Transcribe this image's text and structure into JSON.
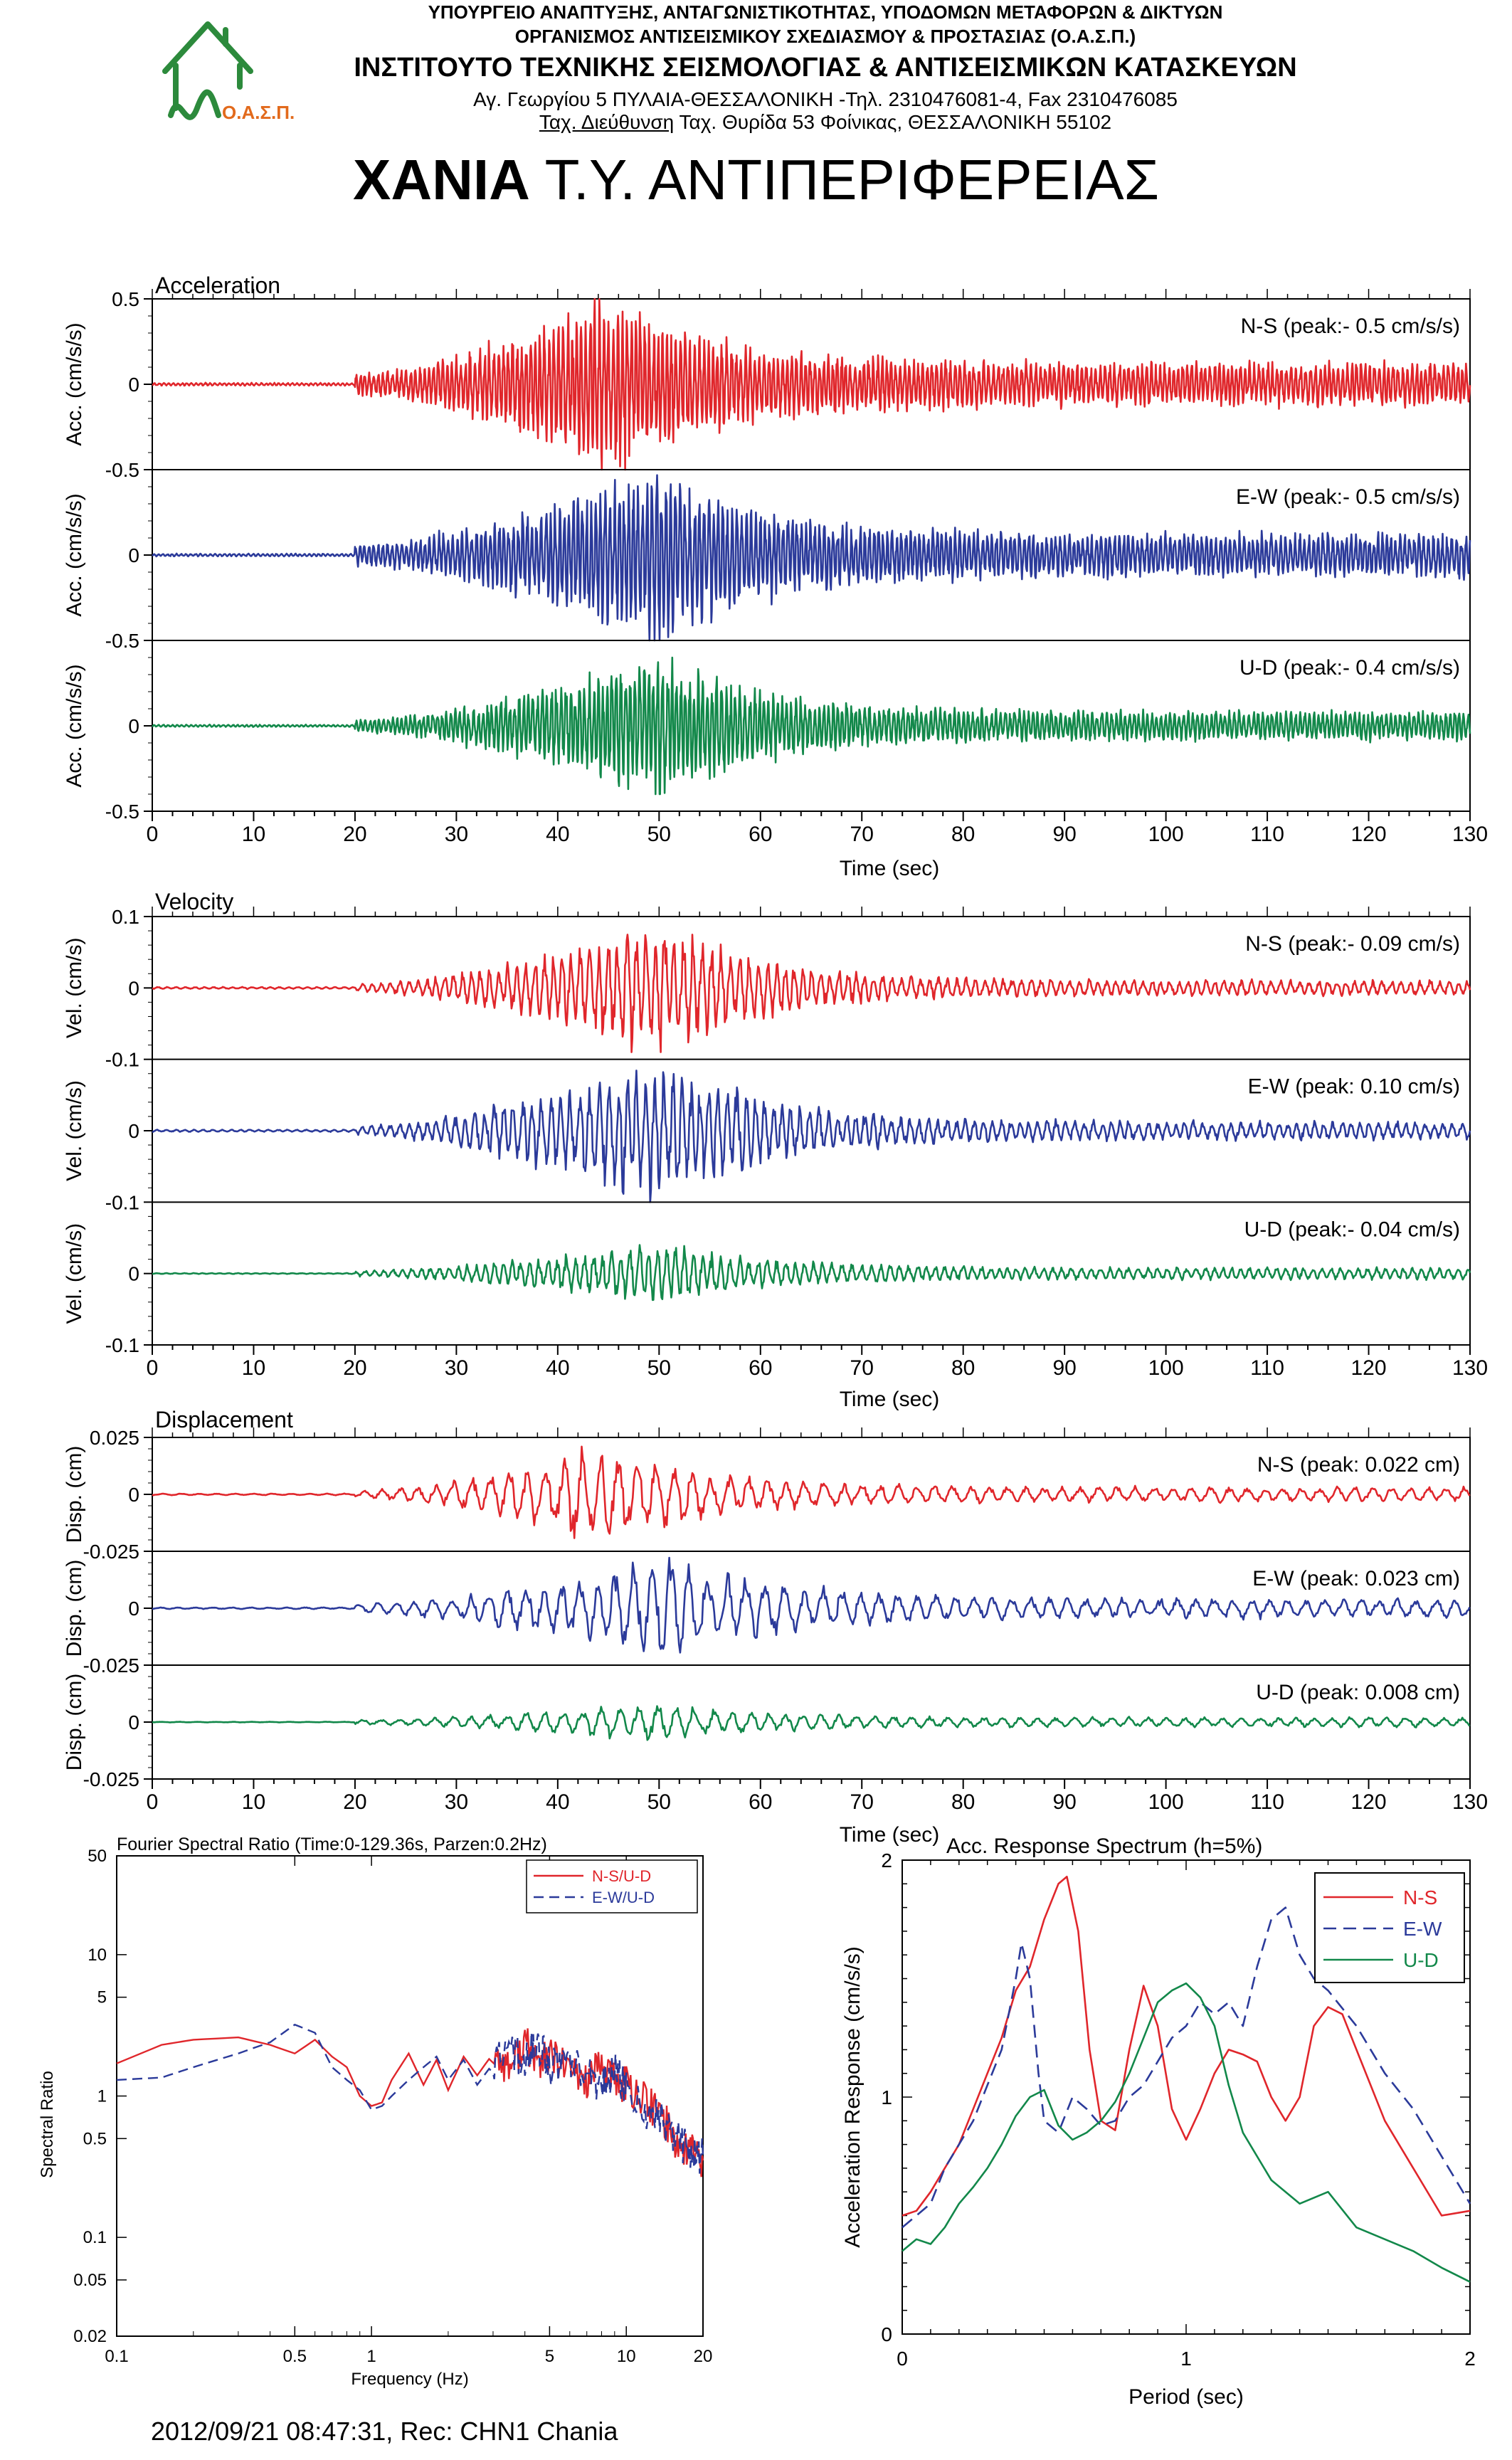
{
  "header": {
    "line1": "ΥΠΟΥΡΓΕΙΟ ΑΝΑΠΤΥΞΗΣ, ΑΝΤΑΓΩΝΙΣΤΙΚΟΤΗΤΑΣ, ΥΠΟΔΟΜΩΝ ΜΕΤΑΦΟΡΩΝ & ΔΙΚΤΥΩΝ",
    "line2": "ΟΡΓΑΝΙΣΜΟΣ ΑΝΤΙΣΕΙΣΜΙΚΟΥ ΣΧΕΔΙΑΣΜΟΥ & ΠΡΟΣΤΑΣΙΑΣ (Ο.Α.Σ.Π.)",
    "line3": "ΙΝΣΤΙΤΟΥΤΟ ΤΕΧΝΙΚΗΣ ΣΕΙΣΜΟΛΟΓΙΑΣ & ΑΝΤΙΣΕΙΣΜΙΚΩΝ ΚΑΤΑΣΚΕΥΩΝ",
    "line4": "Αγ. Γεωργίου 5 ΠΥΛΑΙΑ-ΘΕΣΣΑΛΟΝΙΚΗ -Τηλ. 2310476081-4,  Fax 2310476085",
    "line5_a": "Ταχ. Διεύθυνση",
    "line5_b": " Ταχ. Θυρίδα 53 Φοίνικας, ΘΕΣΣΑΛΟΝΙΚΗ 55102",
    "logo_text": "Ο.Α.Σ.Π."
  },
  "title": {
    "bold": "ΧΑΝΙΑ",
    "rest": " Τ.Υ. ΑΝΤΙΠΕΡΙΦΕΡΕΙΑΣ"
  },
  "colors": {
    "ns": "#e0262b",
    "ew": "#2b3a9a",
    "ud": "#12884a",
    "logo": "#2c8a3c",
    "logo_text": "#e26a1c"
  },
  "time_axis": {
    "ticks": [
      "0",
      "10",
      "20",
      "30",
      "40",
      "50",
      "60",
      "70",
      "80",
      "90",
      "100",
      "110",
      "120",
      "130"
    ],
    "label": "Time (sec)"
  },
  "chart_data": [
    {
      "type": "line",
      "title": "Acceleration",
      "xlabel": "Time (sec)",
      "xlim": [
        0,
        130
      ],
      "ylim": [
        -0.5,
        0.5
      ],
      "series": [
        {
          "name": "N-S",
          "ylabel": "Acc. (cm/s/s)",
          "yticks": [
            "0.5",
            "0",
            "-0.5"
          ],
          "annotation": "N-S (peak:- 0.5 cm/s/s)",
          "envelope": {
            "noise_end": 20,
            "onset": 20,
            "peak_time": 45,
            "decay_end": 130,
            "peak": 0.5,
            "tail": 0.12
          }
        },
        {
          "name": "E-W",
          "ylabel": "Acc. (cm/s/s)",
          "yticks": [
            "0",
            "-0.5"
          ],
          "annotation": "E-W (peak:- 0.5 cm/s/s)",
          "envelope": {
            "noise_end": 20,
            "onset": 20,
            "peak_time": 50,
            "decay_end": 130,
            "peak": 0.5,
            "tail": 0.12
          }
        },
        {
          "name": "U-D",
          "ylabel": "Acc. (cm/s/s)",
          "yticks": [
            "0",
            "-0.5"
          ],
          "annotation": "U-D (peak:- 0.4 cm/s/s)",
          "envelope": {
            "noise_end": 20,
            "onset": 20,
            "peak_time": 50,
            "decay_end": 130,
            "peak": 0.4,
            "tail": 0.08
          }
        }
      ]
    },
    {
      "type": "line",
      "title": "Velocity",
      "xlabel": "Time (sec)",
      "xlim": [
        0,
        130
      ],
      "ylim": [
        -0.1,
        0.1
      ],
      "series": [
        {
          "name": "N-S",
          "ylabel": "Vel. (cm/s)",
          "yticks": [
            "0.1",
            "0",
            "-0.1"
          ],
          "annotation": "N-S (peak:- 0.09 cm/s)",
          "envelope": {
            "noise_end": 20,
            "onset": 20,
            "peak_time": 50,
            "decay_end": 130,
            "peak": 0.09,
            "tail": 0.01
          }
        },
        {
          "name": "E-W",
          "ylabel": "Vel. (cm/s)",
          "yticks": [
            "0",
            "-0.1"
          ],
          "annotation": "E-W (peak: 0.10 cm/s)",
          "envelope": {
            "noise_end": 20,
            "onset": 20,
            "peak_time": 50,
            "decay_end": 130,
            "peak": 0.1,
            "tail": 0.012
          }
        },
        {
          "name": "U-D",
          "ylabel": "Vel. (cm/s)",
          "yticks": [
            "0",
            "-0.1"
          ],
          "annotation": "U-D (peak:- 0.04 cm/s)",
          "envelope": {
            "noise_end": 20,
            "onset": 20,
            "peak_time": 50,
            "decay_end": 130,
            "peak": 0.04,
            "tail": 0.008
          }
        }
      ]
    },
    {
      "type": "line",
      "title": "Displacement",
      "xlabel": "Time (sec)",
      "xlim": [
        0,
        130
      ],
      "ylim": [
        -0.025,
        0.025
      ],
      "series": [
        {
          "name": "N-S",
          "ylabel": "Disp. (cm)",
          "yticks": [
            "0.025",
            "0",
            "-0.025"
          ],
          "annotation": "N-S (peak: 0.022 cm)",
          "envelope": {
            "noise_end": 20,
            "onset": 20,
            "peak_time": 45,
            "decay_end": 130,
            "peak": 0.022,
            "tail": 0.003
          }
        },
        {
          "name": "E-W",
          "ylabel": "Disp. (cm)",
          "yticks": [
            "0",
            "-0.025"
          ],
          "annotation": "E-W (peak: 0.023 cm)",
          "envelope": {
            "noise_end": 20,
            "onset": 20,
            "peak_time": 52,
            "decay_end": 130,
            "peak": 0.023,
            "tail": 0.004
          }
        },
        {
          "name": "U-D",
          "ylabel": "Disp. (cm)",
          "yticks": [
            "0",
            "-0.025"
          ],
          "annotation": "U-D (peak: 0.008 cm)",
          "envelope": {
            "noise_end": 20,
            "onset": 20,
            "peak_time": 50,
            "decay_end": 130,
            "peak": 0.008,
            "tail": 0.002
          }
        }
      ]
    },
    {
      "type": "line",
      "title": "Fourier Spectral Ratio (Time:0-129.36s, Parzen:0.2Hz)",
      "xlabel": "Frequency (Hz)",
      "ylabel": "Spectral Ratio",
      "xscale": "log",
      "yscale": "log",
      "xlim": [
        0.1,
        20
      ],
      "ylim": [
        0.02,
        50
      ],
      "legend": "top-right",
      "xticks": [
        0.1,
        0.5,
        1,
        5,
        10,
        20
      ],
      "xtick_labels": [
        "0.1",
        "0.5",
        "1",
        "5",
        "10",
        "20"
      ],
      "yticks": [
        50,
        10,
        5,
        1,
        0.5,
        0.1,
        0.05,
        0.02
      ],
      "ytick_labels": [
        "50",
        "10",
        "5",
        "1",
        "0.5",
        "0.1",
        "0.05",
        "0.02"
      ],
      "series": [
        {
          "name": "N-S/U-D",
          "style": "solid",
          "x": [
            0.1,
            0.15,
            0.2,
            0.3,
            0.4,
            0.5,
            0.6,
            0.7,
            0.8,
            0.9,
            1.0,
            1.1,
            1.2,
            1.4,
            1.6,
            1.8,
            2.0,
            2.3,
            2.6,
            3.0,
            3.5,
            4.0,
            4.5,
            5.0,
            6,
            7,
            8,
            9,
            10,
            12,
            14,
            16,
            18,
            20
          ],
          "y": [
            1.7,
            2.3,
            2.5,
            2.6,
            2.3,
            2.0,
            2.5,
            1.9,
            1.6,
            1.0,
            0.85,
            0.9,
            1.3,
            2.0,
            1.2,
            1.8,
            1.1,
            1.9,
            1.4,
            2.0,
            1.6,
            2.4,
            1.7,
            1.9,
            1.5,
            1.3,
            1.6,
            1.3,
            1.2,
            0.9,
            0.7,
            0.45,
            0.42,
            0.35
          ]
        },
        {
          "name": "E-W/U-D",
          "style": "dashed",
          "x": [
            0.1,
            0.15,
            0.2,
            0.3,
            0.4,
            0.5,
            0.6,
            0.7,
            0.8,
            0.9,
            1.0,
            1.1,
            1.2,
            1.4,
            1.6,
            1.8,
            2.0,
            2.3,
            2.6,
            3.0,
            3.5,
            4.0,
            4.5,
            5.0,
            6,
            7,
            8,
            9,
            10,
            12,
            14,
            16,
            18,
            20
          ],
          "y": [
            1.3,
            1.35,
            1.6,
            2.0,
            2.4,
            3.2,
            2.8,
            1.6,
            1.3,
            1.1,
            0.8,
            0.85,
            1.0,
            1.3,
            1.6,
            1.9,
            1.3,
            1.8,
            1.2,
            1.7,
            2.1,
            1.8,
            2.4,
            1.6,
            1.7,
            1.4,
            1.2,
            1.5,
            1.1,
            0.8,
            0.65,
            0.5,
            0.4,
            0.38
          ]
        }
      ]
    },
    {
      "type": "line",
      "title": "Acc. Response Spectrum (h=5%)",
      "xlabel": "Period (sec)",
      "ylabel": "Acceleration Response (cm/s/s)",
      "xlim": [
        0,
        2
      ],
      "ylim": [
        0,
        2
      ],
      "legend": "top-right",
      "xticks": [
        0,
        1,
        2
      ],
      "yticks": [
        0,
        1,
        2
      ],
      "series": [
        {
          "name": "N-S",
          "style": "solid",
          "x": [
            0,
            0.05,
            0.1,
            0.15,
            0.2,
            0.25,
            0.3,
            0.35,
            0.4,
            0.45,
            0.5,
            0.55,
            0.58,
            0.62,
            0.66,
            0.7,
            0.75,
            0.8,
            0.85,
            0.9,
            0.95,
            1.0,
            1.05,
            1.1,
            1.15,
            1.2,
            1.25,
            1.3,
            1.35,
            1.4,
            1.45,
            1.5,
            1.55,
            1.6,
            1.7,
            1.8,
            1.9,
            2.0
          ],
          "y": [
            0.5,
            0.52,
            0.6,
            0.7,
            0.8,
            0.95,
            1.1,
            1.25,
            1.45,
            1.55,
            1.75,
            1.9,
            1.93,
            1.7,
            1.2,
            0.9,
            0.86,
            1.2,
            1.47,
            1.3,
            0.95,
            0.82,
            0.95,
            1.1,
            1.2,
            1.18,
            1.15,
            1.0,
            0.9,
            1.0,
            1.3,
            1.38,
            1.35,
            1.2,
            0.9,
            0.7,
            0.5,
            0.52
          ]
        },
        {
          "name": "E-W",
          "style": "dashed",
          "x": [
            0,
            0.05,
            0.1,
            0.15,
            0.2,
            0.25,
            0.3,
            0.35,
            0.4,
            0.42,
            0.45,
            0.48,
            0.5,
            0.55,
            0.6,
            0.65,
            0.7,
            0.75,
            0.8,
            0.85,
            0.9,
            0.95,
            1.0,
            1.05,
            1.1,
            1.15,
            1.2,
            1.25,
            1.3,
            1.35,
            1.4,
            1.45,
            1.5,
            1.6,
            1.7,
            1.8,
            1.9,
            2.0
          ],
          "y": [
            0.45,
            0.5,
            0.55,
            0.7,
            0.8,
            0.9,
            1.05,
            1.2,
            1.5,
            1.65,
            1.5,
            1.1,
            0.9,
            0.85,
            1.0,
            0.95,
            0.88,
            0.9,
            1.0,
            1.05,
            1.15,
            1.25,
            1.3,
            1.4,
            1.35,
            1.4,
            1.3,
            1.55,
            1.75,
            1.8,
            1.6,
            1.5,
            1.45,
            1.3,
            1.1,
            0.95,
            0.75,
            0.55
          ]
        },
        {
          "name": "U-D",
          "style": "solid",
          "x": [
            0,
            0.05,
            0.1,
            0.15,
            0.2,
            0.25,
            0.3,
            0.35,
            0.4,
            0.45,
            0.5,
            0.55,
            0.6,
            0.65,
            0.7,
            0.75,
            0.8,
            0.85,
            0.9,
            0.95,
            1.0,
            1.05,
            1.1,
            1.15,
            1.2,
            1.3,
            1.4,
            1.5,
            1.6,
            1.7,
            1.8,
            1.9,
            2.0
          ],
          "y": [
            0.35,
            0.4,
            0.38,
            0.45,
            0.55,
            0.62,
            0.7,
            0.8,
            0.92,
            1.0,
            1.03,
            0.88,
            0.82,
            0.85,
            0.9,
            0.98,
            1.1,
            1.25,
            1.4,
            1.45,
            1.48,
            1.42,
            1.3,
            1.05,
            0.85,
            0.65,
            0.55,
            0.6,
            0.45,
            0.4,
            0.35,
            0.28,
            0.22
          ]
        }
      ]
    }
  ],
  "footer": "2012/09/21 08:47:31, Rec: CHN1 Chania"
}
